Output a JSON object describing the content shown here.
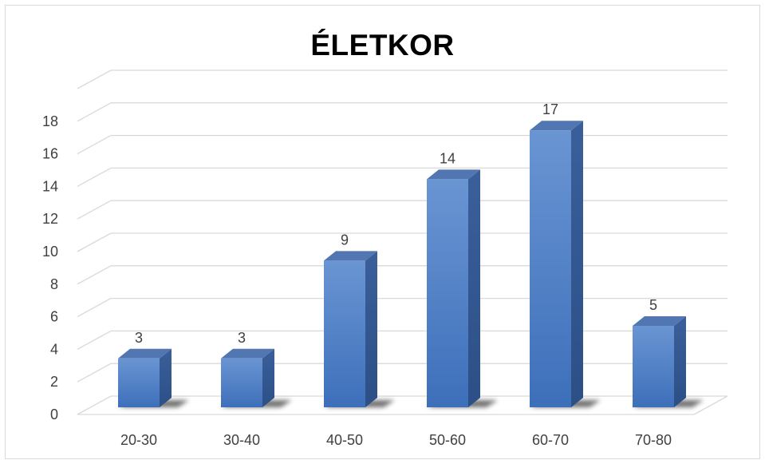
{
  "chart_data": {
    "type": "bar",
    "title": "ÉLETKOR",
    "categories": [
      "20-30",
      "30-40",
      "40-50",
      "50-60",
      "60-70",
      "70-80"
    ],
    "values": [
      3,
      3,
      9,
      14,
      17,
      5
    ],
    "data_labels": [
      "3",
      "3",
      "9",
      "14",
      "17",
      "5"
    ],
    "y_ticks": [
      "0",
      "2",
      "4",
      "6",
      "8",
      "10",
      "12",
      "14",
      "16",
      "18"
    ],
    "ylim": [
      0,
      20
    ],
    "grid": true,
    "legend": "none",
    "bar_color": "#4a7cc4",
    "style": "3d-column"
  }
}
